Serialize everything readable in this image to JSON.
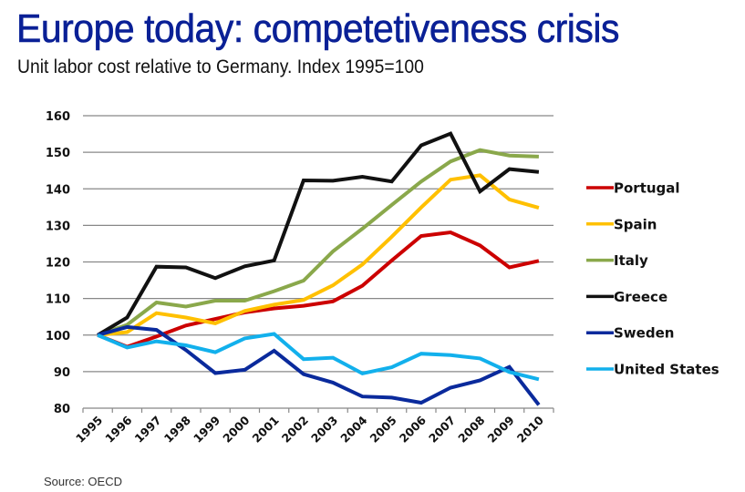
{
  "header": {
    "title": "Europe today: competetiveness crisis",
    "subtitle": "Unit labor cost relative to Germany. Index 1995=100"
  },
  "footer": {
    "source": "Source: OECD"
  },
  "chart_data": {
    "type": "line",
    "title": "Europe today: competetiveness crisis",
    "subtitle": "Unit labor cost relative to Germany. Index 1995=100",
    "xlabel": "",
    "ylabel": "",
    "x": [
      "1995",
      "1996",
      "1997",
      "1998",
      "1999",
      "2000",
      "2001",
      "2002",
      "2003",
      "2004",
      "2005",
      "2006",
      "2007",
      "2008",
      "2009",
      "2010"
    ],
    "ylim": [
      80,
      160
    ],
    "yticks": [
      "80",
      "90",
      "100",
      "110",
      "120",
      "130",
      "140",
      "150",
      "160"
    ],
    "grid": true,
    "legend": "right",
    "series": [
      {
        "name": "Portugal",
        "color": "#cc0000",
        "values": [
          100,
          96.8,
          99.6,
          102.6,
          104.4,
          106.2,
          107.3,
          108.0,
          109.2,
          113.5,
          120.4,
          127.1,
          128.1,
          124.5,
          118.5,
          120.3
        ]
      },
      {
        "name": "Spain",
        "color": "#ffc000",
        "values": [
          100,
          100.8,
          106.0,
          104.8,
          103.2,
          106.6,
          108.3,
          109.6,
          113.6,
          119.3,
          126.9,
          134.9,
          142.5,
          143.7,
          137.1,
          134.8
        ]
      },
      {
        "name": "Italy",
        "color": "#8aa84b",
        "values": [
          100,
          102.8,
          108.9,
          107.8,
          109.4,
          109.4,
          112.0,
          114.9,
          122.9,
          129.1,
          135.6,
          142.0,
          147.5,
          150.6,
          149.1,
          148.8
        ]
      },
      {
        "name": "Greece",
        "color": "#111111",
        "values": [
          100,
          104.8,
          118.7,
          118.5,
          115.6,
          118.8,
          120.4,
          142.3,
          142.2,
          143.3,
          142.0,
          151.9,
          155.1,
          139.3,
          145.4,
          144.6
        ]
      },
      {
        "name": "Sweden",
        "color": "#0a2a9c",
        "values": [
          100,
          102.2,
          101.4,
          95.9,
          89.6,
          90.5,
          95.7,
          89.3,
          87.0,
          83.2,
          82.9,
          81.5,
          85.6,
          87.6,
          91.3,
          80.9
        ]
      },
      {
        "name": "United States",
        "color": "#12b0ec",
        "values": [
          100,
          96.6,
          98.3,
          97.2,
          95.3,
          99.1,
          100.3,
          93.4,
          93.8,
          89.5,
          91.2,
          94.9,
          94.5,
          93.6,
          89.9,
          87.9
        ]
      }
    ]
  }
}
